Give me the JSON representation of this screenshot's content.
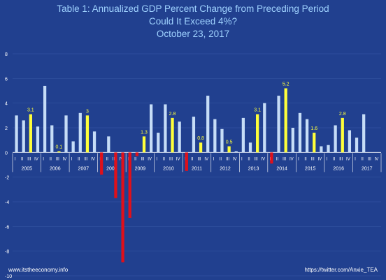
{
  "chart_data": {
    "type": "bar",
    "title": "Table 1: Annualized GDP Percent Change from Preceding Period",
    "subtitle": "Could It Exceed 4%?",
    "date": "October 23, 2017",
    "ylim": [
      -10,
      8
    ],
    "yticks": [
      8,
      6,
      4,
      2,
      0,
      -2,
      -4,
      -6,
      -8,
      -10
    ],
    "quarter_labels": [
      "I",
      "II",
      "III",
      "IV"
    ],
    "years": [
      {
        "year": "2005",
        "values": [
          3.0,
          2.6,
          3.1,
          2.1
        ]
      },
      {
        "year": "2006",
        "values": [
          5.4,
          2.2,
          0.1,
          3.0
        ]
      },
      {
        "year": "2007",
        "values": [
          0.9,
          3.2,
          3.0,
          1.7
        ]
      },
      {
        "year": "2008",
        "values": [
          -1.8,
          1.3,
          -3.7,
          -8.9
        ]
      },
      {
        "year": "2009",
        "values": [
          -5.3,
          -0.3,
          1.3,
          3.9
        ]
      },
      {
        "year": "2010",
        "values": [
          1.6,
          3.9,
          2.8,
          2.5
        ]
      },
      {
        "year": "2011",
        "values": [
          -1.5,
          2.9,
          0.8,
          4.6
        ]
      },
      {
        "year": "2012",
        "values": [
          2.7,
          1.9,
          0.5,
          0.1
        ]
      },
      {
        "year": "2013",
        "values": [
          2.8,
          0.8,
          3.1,
          4.0
        ]
      },
      {
        "year": "2014",
        "values": [
          -0.9,
          4.6,
          5.2,
          2.0
        ]
      },
      {
        "year": "2015",
        "values": [
          3.2,
          2.7,
          1.6,
          0.5
        ]
      },
      {
        "year": "2016",
        "values": [
          0.6,
          2.2,
          2.8,
          1.8
        ]
      },
      {
        "year": "2017",
        "values": [
          1.2,
          3.1
        ]
      }
    ],
    "data_labels": [
      {
        "year": "2005",
        "quarter": "III",
        "text": "3.1"
      },
      {
        "year": "2006",
        "quarter": "III",
        "text": "0.1"
      },
      {
        "year": "2007",
        "quarter": "III",
        "text": "3"
      },
      {
        "year": "2009",
        "quarter": "III",
        "text": "1.3"
      },
      {
        "year": "2010",
        "quarter": "III",
        "text": "2.8"
      },
      {
        "year": "2011",
        "quarter": "III",
        "text": "0.8"
      },
      {
        "year": "2012",
        "quarter": "III",
        "text": "0.5"
      },
      {
        "year": "2013",
        "quarter": "III",
        "text": "3.1"
      },
      {
        "year": "2014",
        "quarter": "III",
        "text": "5.2"
      },
      {
        "year": "2015",
        "quarter": "III",
        "text": "1.6"
      },
      {
        "year": "2016",
        "quarter": "III",
        "text": "2.8"
      }
    ],
    "colors": {
      "background": "#21408f",
      "positive": "#c6ddf7",
      "negative": "#e0101a",
      "third_quarter": "#ffff3a",
      "title": "#9fd2ff",
      "axis_text": "#ffffff",
      "grid": "#3a5aa8"
    }
  },
  "footer": {
    "left": "www.itstheeconomy.info",
    "right": "https://twitter.com/Anxie_TEA"
  }
}
